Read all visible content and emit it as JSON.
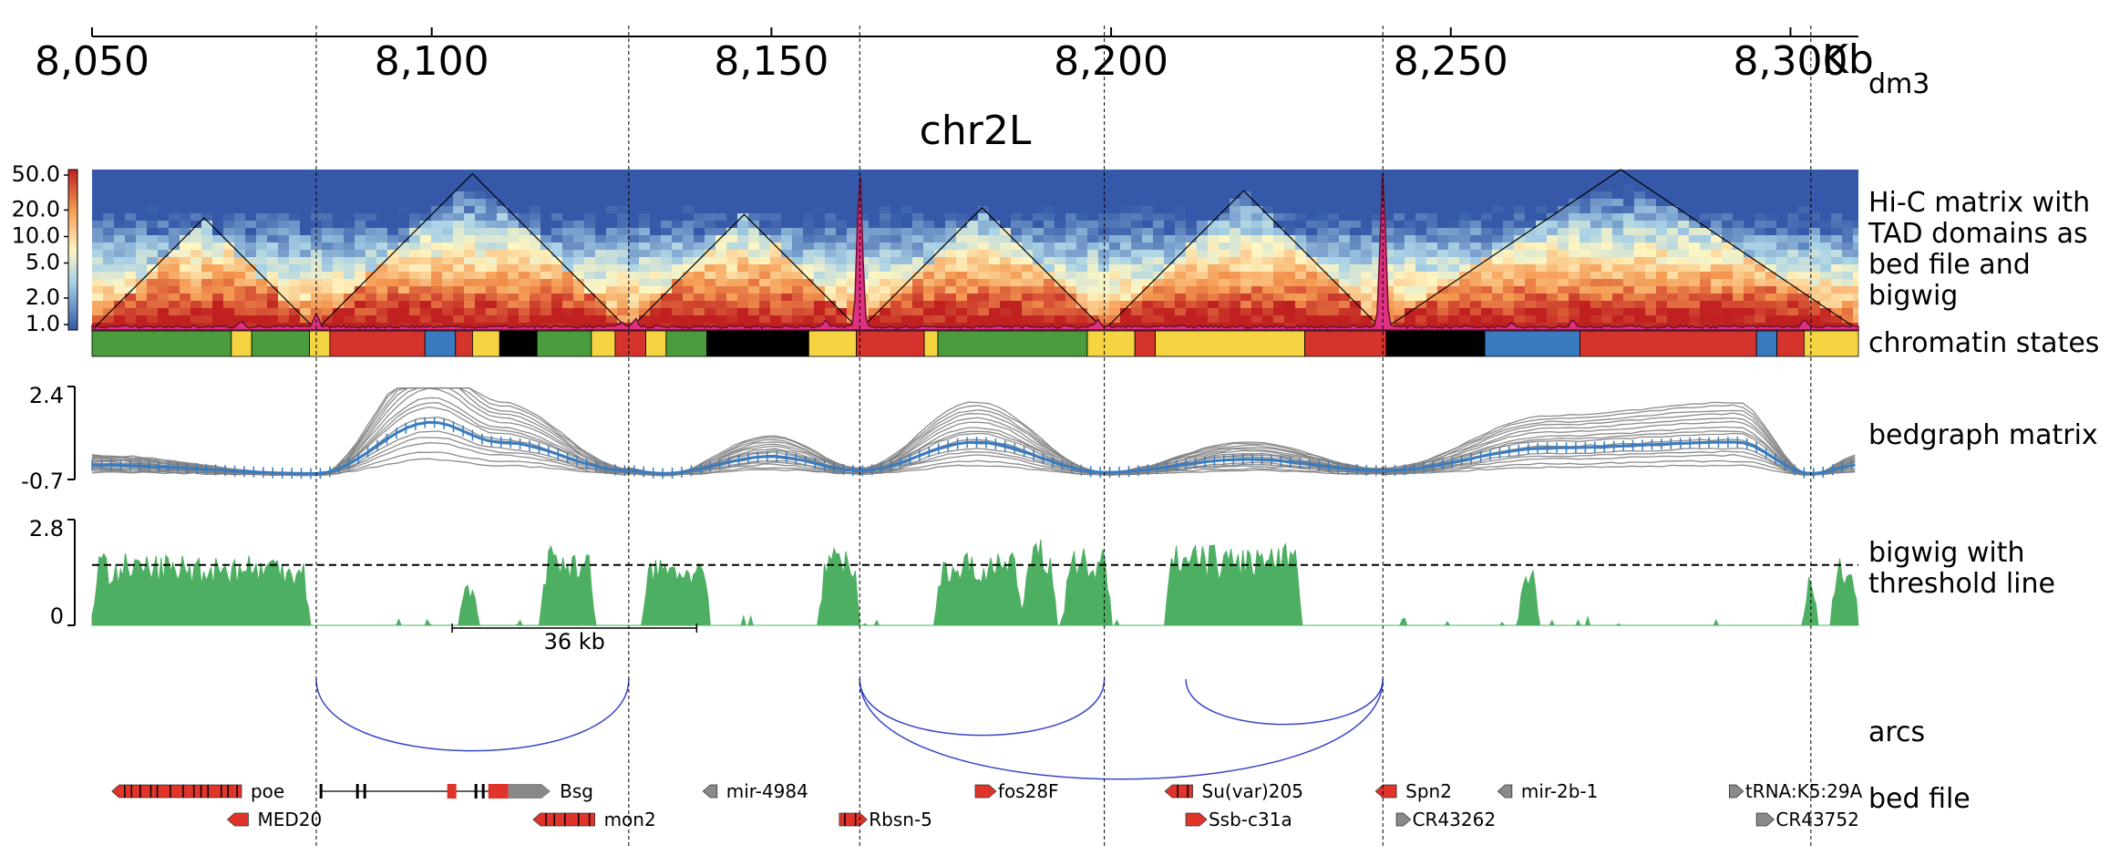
{
  "chart_data": {
    "type": "genome_tracks",
    "genome": "dm3",
    "chrom": "chr2L",
    "xaxis": {
      "start": 8050,
      "end": 8310,
      "ticks": [
        8050,
        8100,
        8150,
        8200,
        8250,
        8300
      ],
      "tick_labels": [
        "8,050",
        "8,100",
        "8,150",
        "8,200",
        "8,250",
        "8,300"
      ],
      "unit": "Kb"
    },
    "vlines": [
      8083,
      8129,
      8163,
      8199,
      8240,
      8303
    ],
    "tracks": [
      {
        "id": "hic",
        "type": "heatmap",
        "label": "Hi-C matrix with TAD domains as bed file and bigwig",
        "colorbar_ticks": [
          "50.0",
          "20.0",
          "10.0",
          "5.0",
          "2.0",
          "1.0"
        ],
        "colorbar_values": [
          50,
          20,
          10,
          5,
          2,
          1
        ],
        "tads": [
          [
            8050,
            8083
          ],
          [
            8083,
            8129
          ],
          [
            8129,
            8163
          ],
          [
            8163,
            8199
          ],
          [
            8199,
            8240
          ],
          [
            8240,
            8310
          ]
        ],
        "bigwig_peaks": [
          [
            8072,
            0.25
          ],
          [
            8083,
            0.45
          ],
          [
            8128,
            0.2
          ],
          [
            8130,
            0.3
          ],
          [
            8158,
            0.2
          ],
          [
            8163,
            1.0
          ],
          [
            8198,
            0.25
          ],
          [
            8240,
            1.0
          ],
          [
            8259,
            0.2
          ],
          [
            8268,
            0.25
          ],
          [
            8302,
            0.25
          ]
        ]
      },
      {
        "id": "states",
        "type": "bed",
        "label": "chromatin states",
        "colors": {
          "green": "#4a9c3c",
          "yellow": "#f5d442",
          "red": "#d4342c",
          "blue": "#3a7bbf",
          "black": "#000000"
        },
        "segments": [
          [
            8050,
            8070.5,
            "green"
          ],
          [
            8070.5,
            8073.5,
            "yellow"
          ],
          [
            8073.5,
            8082,
            "green"
          ],
          [
            8082,
            8085,
            "yellow"
          ],
          [
            8085,
            8099,
            "red"
          ],
          [
            8099,
            8103.5,
            "blue"
          ],
          [
            8103.5,
            8106,
            "red"
          ],
          [
            8106,
            8110,
            "yellow"
          ],
          [
            8110,
            8115.5,
            "black"
          ],
          [
            8115.5,
            8123.5,
            "green"
          ],
          [
            8123.5,
            8127,
            "yellow"
          ],
          [
            8127,
            8131.5,
            "red"
          ],
          [
            8131.5,
            8134.5,
            "yellow"
          ],
          [
            8134.5,
            8140.5,
            "green"
          ],
          [
            8140.5,
            8155.5,
            "black"
          ],
          [
            8155.5,
            8162.5,
            "yellow"
          ],
          [
            8162.5,
            8172.5,
            "red"
          ],
          [
            8172.5,
            8174.5,
            "yellow"
          ],
          [
            8174.5,
            8196.5,
            "green"
          ],
          [
            8196.5,
            8203.5,
            "yellow"
          ],
          [
            8203.5,
            8206.5,
            "red"
          ],
          [
            8206.5,
            8228.5,
            "yellow"
          ],
          [
            8228.5,
            8240.5,
            "red"
          ],
          [
            8240.5,
            8255,
            "black"
          ],
          [
            8255,
            8269,
            "blue"
          ],
          [
            8269,
            8295,
            "red"
          ],
          [
            8295,
            8298,
            "blue"
          ],
          [
            8298,
            8302,
            "red"
          ],
          [
            8302,
            8310,
            "yellow"
          ]
        ]
      },
      {
        "id": "bedgraph_matrix",
        "type": "line",
        "label": "bedgraph matrix",
        "ylim": [
          -0.7,
          2.4
        ],
        "yticks": [
          "2.4",
          "-0.7"
        ],
        "profile_points": [
          [
            8050,
            0.15
          ],
          [
            8083,
            0.0
          ],
          [
            8100,
            0.9
          ],
          [
            8110,
            0.55
          ],
          [
            8129,
            0.05
          ],
          [
            8134,
            0.0
          ],
          [
            8150,
            0.3
          ],
          [
            8163,
            0.05
          ],
          [
            8180,
            0.55
          ],
          [
            8199,
            0.02
          ],
          [
            8220,
            0.25
          ],
          [
            8240,
            0.05
          ],
          [
            8265,
            0.45
          ],
          [
            8292,
            0.55
          ],
          [
            8303,
            0.0
          ],
          [
            8310,
            0.15
          ]
        ],
        "mean_color": "#3a7bbf",
        "line_color": "#808080"
      },
      {
        "id": "bigwig",
        "type": "area",
        "label": "bigwig with threshold line",
        "ylim": [
          0,
          2.8
        ],
        "yticks": [
          "2.8",
          "0"
        ],
        "threshold": 1.6,
        "color": "#4daf62",
        "scale_bar": {
          "label": "36 kb",
          "start": 8103,
          "end": 8139
        }
      },
      {
        "id": "arcs",
        "type": "arcs",
        "label": "arcs",
        "color": "#3747c8",
        "links": [
          [
            8083,
            8129
          ],
          [
            8163,
            8199
          ],
          [
            8211,
            8240
          ],
          [
            8163,
            8240
          ]
        ]
      },
      {
        "id": "genes",
        "type": "bed",
        "label": "bed file",
        "genes": [
          {
            "name": "poe",
            "start": 8054,
            "end": 8072,
            "row": 0,
            "strand": "-",
            "style": "exon_red"
          },
          {
            "name": "MED20",
            "start": 8071,
            "end": 8073,
            "row": 1,
            "strand": "-",
            "style": "exon_red"
          },
          {
            "name": "Bsg",
            "start": 8083.5,
            "end": 8117.5,
            "row": 0,
            "strand": "+",
            "style": "intron"
          },
          {
            "name": "mon2",
            "start": 8116,
            "end": 8124,
            "row": 1,
            "strand": "-",
            "style": "exon_red"
          },
          {
            "name": "mir-4984",
            "start": 8141,
            "end": 8142,
            "row": 0,
            "strand": "-",
            "style": "gray"
          },
          {
            "name": "Rbsn-5",
            "start": 8160,
            "end": 8163,
            "row": 1,
            "strand": "+",
            "style": "exon_red"
          },
          {
            "name": "fos28F",
            "start": 8180,
            "end": 8182,
            "row": 0,
            "strand": "+",
            "style": "exon_red"
          },
          {
            "name": "Su(var)205",
            "start": 8209,
            "end": 8212,
            "row": 0,
            "strand": "-",
            "style": "exon_red"
          },
          {
            "name": "Ssb-c31a",
            "start": 8211,
            "end": 8213,
            "row": 1,
            "strand": "+",
            "style": "exon_red"
          },
          {
            "name": "Spn2",
            "start": 8240,
            "end": 8242,
            "row": 0,
            "strand": "-",
            "style": "exon_red"
          },
          {
            "name": "CR43262",
            "start": 8242,
            "end": 8243,
            "row": 1,
            "strand": "+",
            "style": "gray"
          },
          {
            "name": "mir-2b-1",
            "start": 8258,
            "end": 8259,
            "row": 0,
            "strand": "-",
            "style": "gray"
          },
          {
            "name": "tRNA:K5:29A",
            "start": 8291,
            "end": 8292,
            "row": 0,
            "strand": "+",
            "style": "gray"
          },
          {
            "name": "CR43752",
            "start": 8295,
            "end": 8296.5,
            "row": 1,
            "strand": "+",
            "style": "gray"
          }
        ]
      }
    ]
  }
}
